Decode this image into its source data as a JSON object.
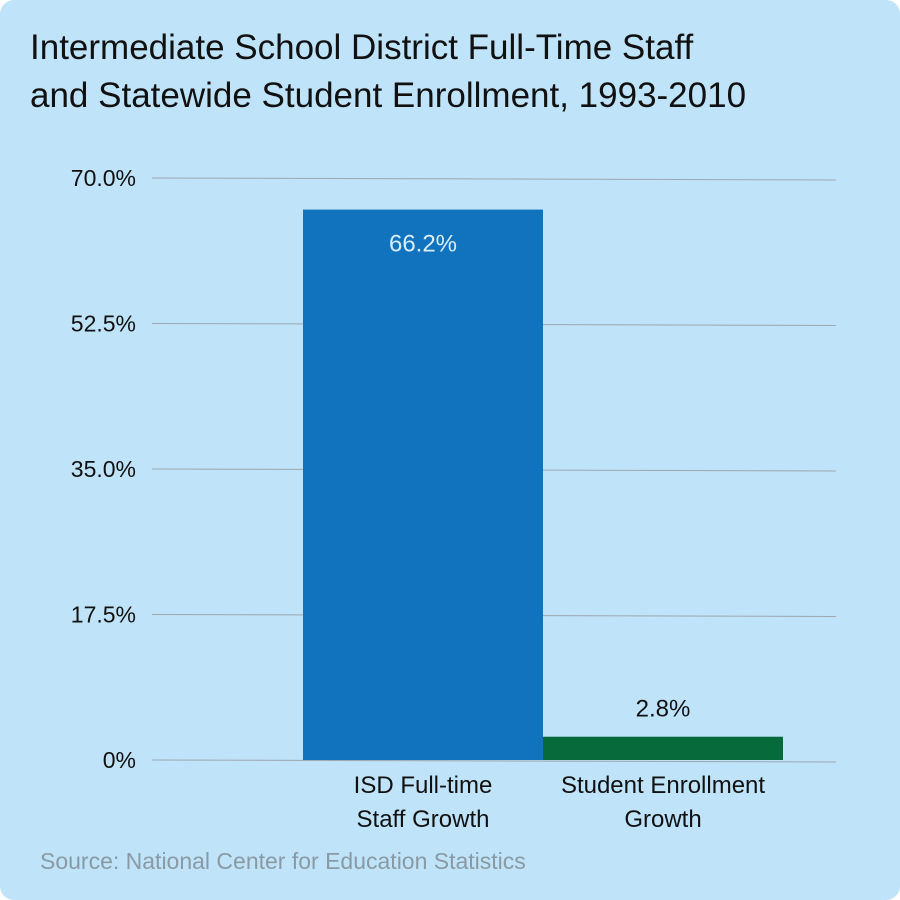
{
  "chart_data": {
    "type": "bar",
    "title_lines": [
      "Intermediate School District Full-Time Staff",
      "and Statewide Student Enrollment, 1993-2010"
    ],
    "categories": [
      [
        "ISD Full-time",
        "Staff Growth"
      ],
      [
        "Student Enrollment",
        "Growth"
      ]
    ],
    "values": [
      66.2,
      2.8
    ],
    "data_labels": [
      "66.2%",
      "2.8%"
    ],
    "bar_colors": [
      "#1173be",
      "#066a3a"
    ],
    "ylim": [
      0,
      70
    ],
    "yticks": [
      0,
      17.5,
      35,
      52.5,
      70
    ],
    "ytick_labels": [
      "0%",
      "17.5%",
      "35.0%",
      "52.5%",
      "70.0%"
    ],
    "grid": true,
    "xlabel": "",
    "ylabel": ""
  },
  "source": "Source: National Center for Education Statistics",
  "colors": {
    "background": "#bfe3f8",
    "grid": "#9aa8b0",
    "title": "#111111",
    "source": "#8a9aa4",
    "inside_label": "#d9eefa"
  }
}
